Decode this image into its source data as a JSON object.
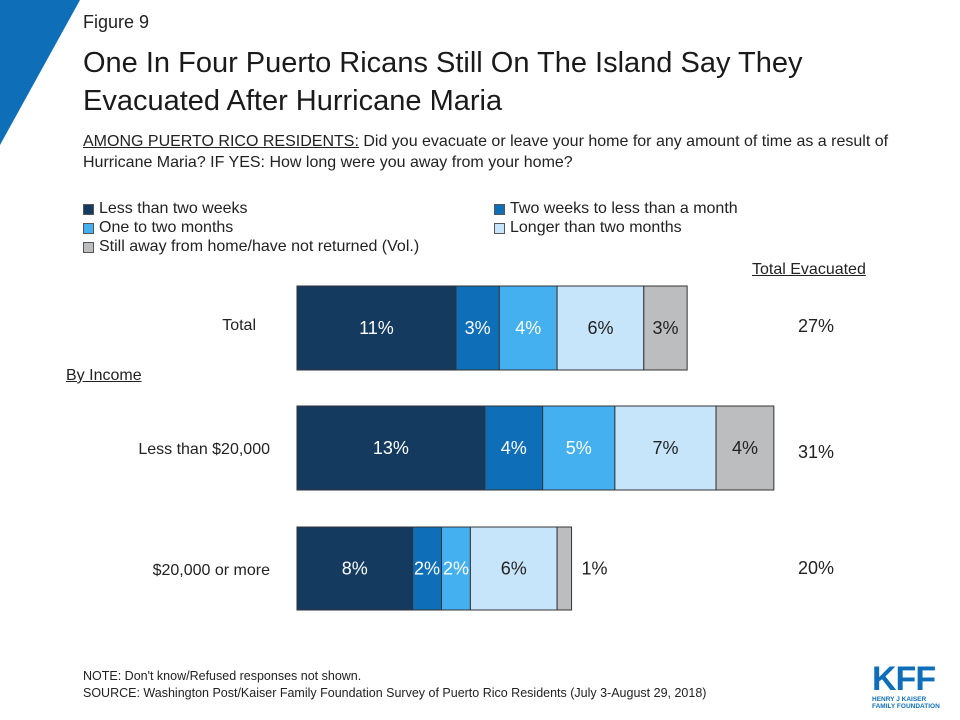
{
  "figure_label": "Figure 9",
  "title": "One In Four Puerto Ricans Still On The Island Say They Evacuated After Hurricane Maria",
  "question": {
    "prefix": "AMONG PUERTO RICO RESIDENTS:",
    "text": " Did you evacuate or leave your home for any amount of time as a result of Hurricane Maria? IF YES: How long were you away from your home?"
  },
  "colors": {
    "accent": "#0e6fb8",
    "corner": "#0e6fb8"
  },
  "chart_data": {
    "type": "bar",
    "orientation": "horizontal",
    "stacked": true,
    "categories": [
      "Total",
      "Less than $20,000",
      "$20,000 or more"
    ],
    "group_label": "By Income",
    "series": [
      {
        "name": "Less than two weeks",
        "color": "#143a5f",
        "text_color": "#ffffff",
        "values": [
          11,
          13,
          8
        ],
        "labels": [
          "11%",
          "13%",
          "8%"
        ]
      },
      {
        "name": "Two weeks to less than a month",
        "color": "#0e6fb8",
        "text_color": "#ffffff",
        "values": [
          3,
          4,
          2
        ],
        "labels": [
          "3%",
          "4%",
          "2%"
        ]
      },
      {
        "name": "One to two months",
        "color": "#45b0f0",
        "text_color": "#ffffff",
        "values": [
          4,
          5,
          2
        ],
        "labels": [
          "4%",
          "5%",
          "2%"
        ]
      },
      {
        "name": "Longer than two months",
        "color": "#c7e5fa",
        "text_color": "#222222",
        "values": [
          6,
          7,
          6
        ],
        "labels": [
          "6%",
          "7%",
          "6%"
        ]
      },
      {
        "name": "Still away from home/have not returned (Vol.)",
        "color": "#bcbdbf",
        "text_color": "#222222",
        "values": [
          3,
          4,
          1
        ],
        "labels": [
          "3%",
          "4%",
          "1%"
        ]
      }
    ],
    "totals_header": "Total Evacuated",
    "totals": [
      "27%",
      "31%",
      "20%"
    ],
    "legend_position": "top-left"
  },
  "note": "NOTE: Don't know/Refused responses not shown.",
  "source": "SOURCE: Washington Post/Kaiser Family Foundation Survey of Puerto Rico Residents (July 3-August 29, 2018)",
  "logo": {
    "main": "KFF",
    "line1": "HENRY J KAISER",
    "line2": "FAMILY FOUNDATION"
  }
}
